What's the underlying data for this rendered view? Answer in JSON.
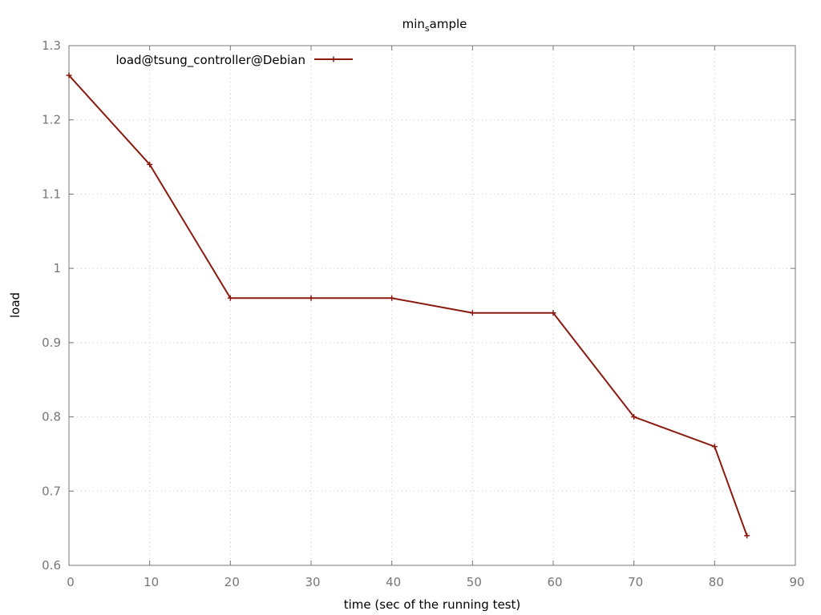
{
  "chart_data": {
    "type": "line",
    "title_main": "min",
    "title_sub": "s",
    "title_rest": "ample",
    "xlabel": "time (sec of the running test)",
    "ylabel": "load",
    "xlim": [
      0,
      90
    ],
    "ylim": [
      0.6,
      1.3
    ],
    "x_ticks": [
      0,
      10,
      20,
      30,
      40,
      50,
      60,
      70,
      80,
      90
    ],
    "y_ticks": [
      0.6,
      0.7,
      0.8,
      0.9,
      1.0,
      1.1,
      1.2,
      1.3
    ],
    "x_tick_labels": [
      "0",
      "10",
      "20",
      "30",
      "40",
      "50",
      "60",
      "70",
      "80",
      "90"
    ],
    "y_tick_labels": [
      "0.6",
      "0.7",
      "0.8",
      "0.9",
      "1",
      "1.1",
      "1.2",
      "1.3"
    ],
    "grid": true,
    "legend_position": "top-left",
    "series": [
      {
        "name": "load@tsung_controller@Debian",
        "color": "#8b1a0e",
        "x": [
          0,
          10,
          20,
          30,
          40,
          50,
          60,
          70,
          80,
          84
        ],
        "y": [
          1.26,
          1.14,
          0.96,
          0.96,
          0.96,
          0.94,
          0.94,
          0.8,
          0.76,
          0.64
        ]
      }
    ]
  }
}
